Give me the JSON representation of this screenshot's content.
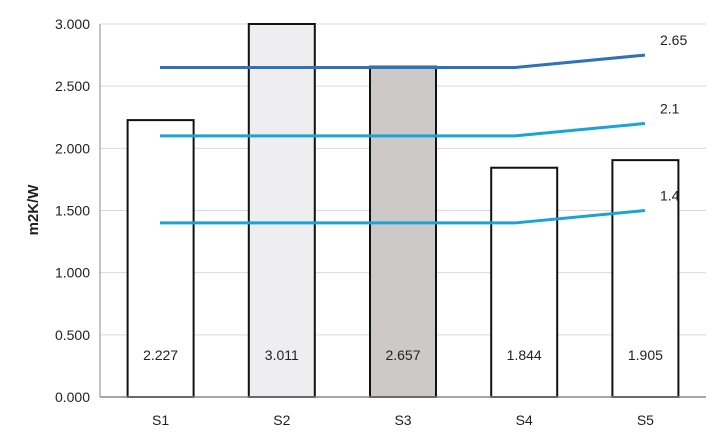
{
  "chart_data": {
    "type": "bar",
    "title": "",
    "xlabel": "",
    "ylabel": "m2K/W",
    "ylim": [
      0,
      3.0
    ],
    "yticks": [
      "0.000",
      "0.500",
      "1.000",
      "1.500",
      "2.000",
      "2.500",
      "3.000"
    ],
    "grid": "horizontal",
    "categories": [
      "S1",
      "S2",
      "S3",
      "S4",
      "S5"
    ],
    "values": [
      2.227,
      3.011,
      2.657,
      1.844,
      1.905
    ],
    "value_labels": [
      "2.227",
      "3.011",
      "2.657",
      "1.844",
      "1.905"
    ],
    "bar_fill_colors": [
      "#ffffff",
      "#eeedf0",
      "#cdc9c9",
      "#ffffff",
      "#ffffff"
    ],
    "bar_stroke_color": "#111111",
    "reference_lines": [
      {
        "label": "2.65",
        "values": [
          2.65,
          2.65,
          2.65,
          2.65,
          2.75
        ],
        "color": "#2e74b5"
      },
      {
        "label": "2.1",
        "values": [
          2.1,
          2.1,
          2.1,
          2.1,
          2.2
        ],
        "color": "#1aa3d4"
      },
      {
        "label": "1.4",
        "values": [
          1.4,
          1.4,
          1.4,
          1.4,
          1.5
        ],
        "color": "#1aa3d4"
      }
    ]
  }
}
